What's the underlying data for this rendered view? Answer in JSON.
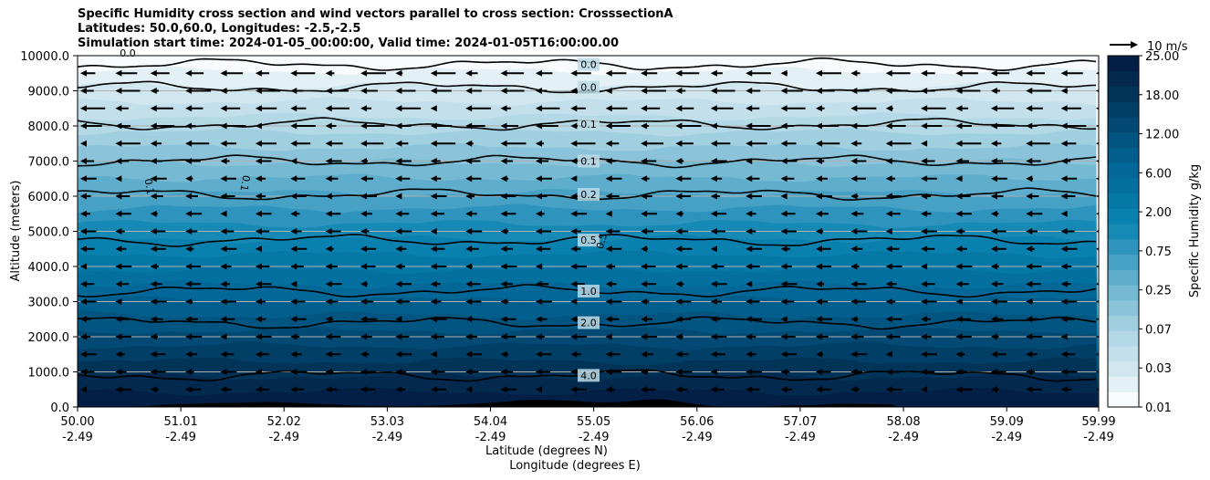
{
  "chart_data": {
    "type": "filled_contour_cross_section",
    "title_lines": [
      "Specific Humidity cross section and wind vectors parallel to cross section: CrosssectionA",
      "Latitudes: 50.0,60.0, Longitudes: -2.5,-2.5",
      "Simulation start time: 2024-01-05_00:00:00, Valid time: 2024-01-05T16:00:00.00"
    ],
    "ylabel": "Altitude (meters)",
    "xlabel_lines": [
      "Latitude (degrees N)",
      "Longitude (degrees E)"
    ],
    "ylim": [
      0,
      10000
    ],
    "xlim": [
      50.0,
      59.99
    ],
    "y_ticks": [
      "0.0",
      "1000.0",
      "2000.0",
      "3000.0",
      "4000.0",
      "5000.0",
      "6000.0",
      "7000.0",
      "8000.0",
      "9000.0",
      "10000.0"
    ],
    "x_ticks": [
      {
        "lat": "50.00",
        "lon": "-2.49"
      },
      {
        "lat": "51.01",
        "lon": "-2.49"
      },
      {
        "lat": "52.02",
        "lon": "-2.49"
      },
      {
        "lat": "53.03",
        "lon": "-2.49"
      },
      {
        "lat": "54.04",
        "lon": "-2.49"
      },
      {
        "lat": "55.05",
        "lon": "-2.49"
      },
      {
        "lat": "56.06",
        "lon": "-2.49"
      },
      {
        "lat": "57.07",
        "lon": "-2.49"
      },
      {
        "lat": "58.08",
        "lon": "-2.49"
      },
      {
        "lat": "59.09",
        "lon": "-2.49"
      },
      {
        "lat": "59.99",
        "lon": "-2.49"
      }
    ],
    "colorbar": {
      "label": "Specific Humidity g/kg",
      "tick_labels": [
        "0.01",
        "0.03",
        "0.07",
        "0.25",
        "0.75",
        "2.00",
        "6.00",
        "12.00",
        "18.00",
        "25.00"
      ],
      "colors": [
        "#f7fbfd",
        "#e3f0f5",
        "#d1e7ef",
        "#c2dfeb",
        "#b3d8e6",
        "#a0cfe0",
        "#8bc4da",
        "#75b9d3",
        "#5eadcc",
        "#46a1c5",
        "#2e94bd",
        "#1789b5",
        "#0a80ae",
        "#0578a6",
        "#04709f",
        "#036897",
        "#025f8d",
        "#025581",
        "#024a74",
        "#023f66",
        "#02345a",
        "#03294f",
        "#041f46"
      ]
    },
    "contour_levels": [
      {
        "label": "0.0",
        "altitude_m": 9750
      },
      {
        "label": "0.0",
        "altitude_m": 9100
      },
      {
        "label": "0.1",
        "altitude_m": 8050
      },
      {
        "label": "0.1",
        "altitude_m": 7000
      },
      {
        "label": "0.2",
        "altitude_m": 6050
      },
      {
        "label": "0.5",
        "altitude_m": 4750
      },
      {
        "label": "1.0",
        "altitude_m": 3300
      },
      {
        "label": "2.0",
        "altitude_m": 2400
      },
      {
        "label": "4.0",
        "altitude_m": 900
      }
    ],
    "extra_contour_labels": [
      "0.1",
      "0.1",
      "0.5",
      "0.0"
    ],
    "quiver_key": {
      "label": "10 m/s",
      "speed_ms": 10
    },
    "wind_vector_rows_m": [
      500,
      1000,
      1500,
      2000,
      2500,
      3000,
      3500,
      4000,
      4500,
      5000,
      5500,
      6000,
      6500,
      7000,
      7500,
      8000,
      8500,
      9000,
      9500
    ],
    "wind_direction": "toward decreasing latitude (leftward)",
    "grid": true
  }
}
